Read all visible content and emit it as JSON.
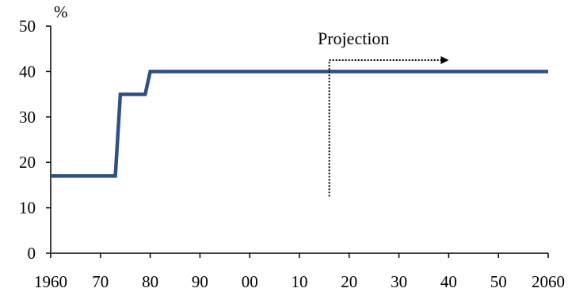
{
  "chart_data": {
    "type": "line",
    "title": "",
    "xlabel": "",
    "ylabel": "%",
    "xlim": [
      1960,
      2060
    ],
    "ylim": [
      0,
      50
    ],
    "grid": false,
    "x_ticks": [
      {
        "value": 1960,
        "label": "1960"
      },
      {
        "value": 1970,
        "label": "70"
      },
      {
        "value": 1980,
        "label": "80"
      },
      {
        "value": 1990,
        "label": "90"
      },
      {
        "value": 2000,
        "label": "00"
      },
      {
        "value": 2010,
        "label": "10"
      },
      {
        "value": 2020,
        "label": "20"
      },
      {
        "value": 2030,
        "label": "30"
      },
      {
        "value": 2040,
        "label": "40"
      },
      {
        "value": 2050,
        "label": "50"
      },
      {
        "value": 2060,
        "label": "2060"
      }
    ],
    "y_ticks": [
      {
        "value": 0,
        "label": "0"
      },
      {
        "value": 10,
        "label": "10"
      },
      {
        "value": 20,
        "label": "20"
      },
      {
        "value": 30,
        "label": "30"
      },
      {
        "value": 40,
        "label": "40"
      },
      {
        "value": 50,
        "label": "50"
      }
    ],
    "series": [
      {
        "color": "#2f5083",
        "x": [
          1960,
          1973,
          1974,
          1979,
          1980,
          2060
        ],
        "values": [
          17,
          17,
          35,
          35,
          40,
          40
        ]
      }
    ],
    "annotations": {
      "projection": {
        "text": "Projection",
        "x": 2016,
        "y_from": 12.5,
        "y_to": 42.5,
        "arrow_to_x": 2040
      }
    }
  }
}
